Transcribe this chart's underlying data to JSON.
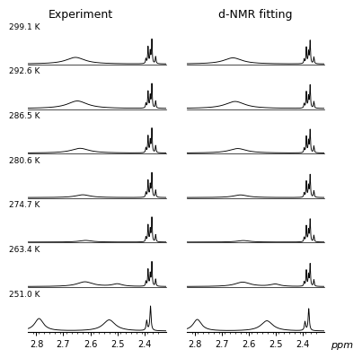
{
  "temperatures": [
    "299.1 K",
    "292.6 K",
    "286.5 K",
    "280.6 K",
    "274.7 K",
    "263.4 K",
    "251.0 K"
  ],
  "title_left": "Experiment",
  "title_right": "d-NMR fitting",
  "xlabel": "ppm",
  "xmin": 2.83,
  "xmax": 2.32,
  "background_color": "#ffffff",
  "line_color": "#000000",
  "tick_labels": [
    "2.8",
    "2.7",
    "2.6",
    "2.5",
    "2.4"
  ],
  "tick_positions": [
    2.8,
    2.7,
    2.6,
    2.5,
    2.4
  ]
}
